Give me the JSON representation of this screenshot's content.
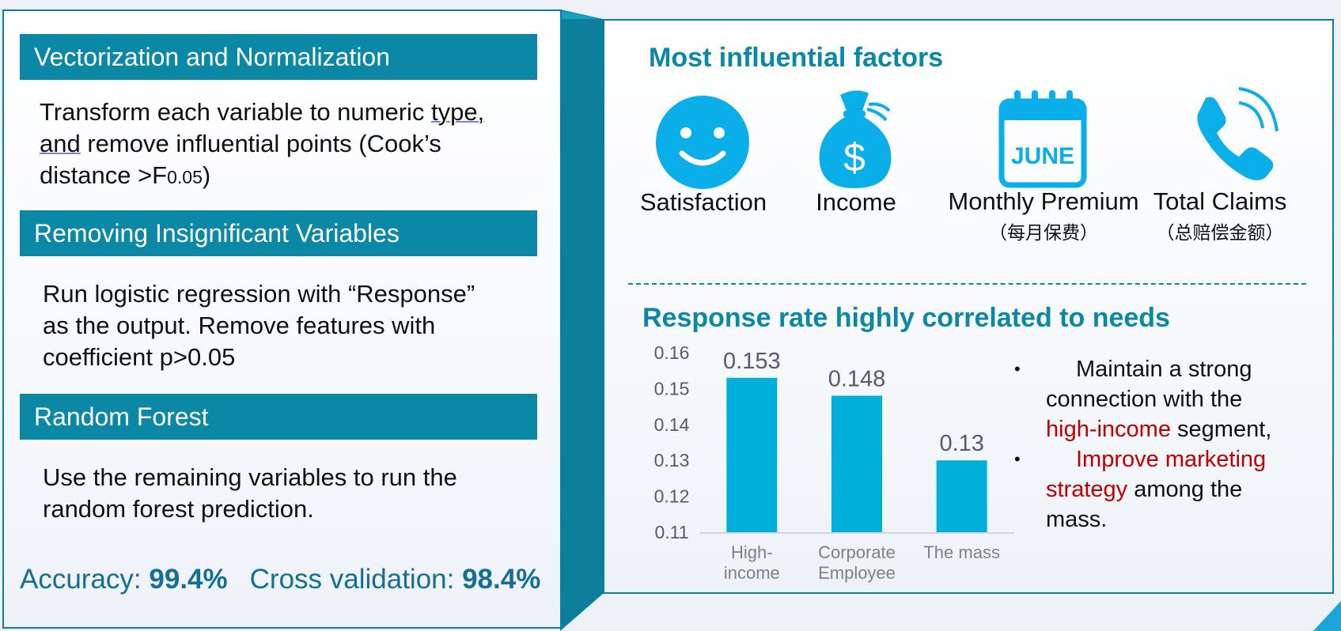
{
  "left": {
    "sections": [
      {
        "title": "Vectorization and Normalization",
        "body_part1": "Transform each variable to numeric ",
        "body_mark1": "type,",
        "body_mark2": "and",
        "body_part2": " remove influential points (Cook’s",
        "body_part3": "distance >F",
        "body_sub": "0.05",
        "body_part4": ")"
      },
      {
        "title": "Removing Insignificant Variables",
        "body_line1": "Run logistic regression with “Response”",
        "body_line2": "as the output. Remove features with",
        "body_line3": "coefficient p>0.05"
      },
      {
        "title": "Random Forest",
        "body_line1": "Use the remaining variables to run the",
        "body_line2": "random forest prediction."
      }
    ],
    "metrics": {
      "accuracy_label": "Accuracy: ",
      "accuracy_value": "99.4%",
      "cv_label": "Cross validation: ",
      "cv_value": "98.4%"
    }
  },
  "right": {
    "factors_title": "Most influential factors",
    "factors": [
      {
        "icon": "smiley-icon",
        "label": "Satisfaction",
        "sublabel": ""
      },
      {
        "icon": "money-bag-icon",
        "label": "Income",
        "sublabel": "",
        "icon_text": "$"
      },
      {
        "icon": "calendar-icon",
        "label": "Monthly Premium",
        "sublabel": "（每月保费）",
        "icon_text": "JUNE"
      },
      {
        "icon": "phone-icon",
        "label": "Total Claims",
        "sublabel": "（总赔偿金额）"
      }
    ],
    "response_title": "Response rate highly correlated to needs",
    "bullets": {
      "b1_line1": "Maintain a strong",
      "b1_line2": "connection with the",
      "b1_highlight": "high-income",
      "b1_rest": " segment,",
      "b2_highlight1": "Improve marketing",
      "b2_highlight2": "strategy",
      "b2_rest": " among the",
      "b2_line3": "mass.",
      "bullet_glyph": "•"
    }
  },
  "colors": {
    "accent": "#0b88a6",
    "bar": "#00b0db",
    "icon": "#0aaee8",
    "highlight_red": "#c00000",
    "metric_text": "#146f96"
  },
  "chart_data": {
    "type": "bar",
    "categories": [
      [
        "High-",
        "income"
      ],
      [
        "Corporate",
        "Employee"
      ],
      [
        "The mass"
      ]
    ],
    "values": [
      0.153,
      0.148,
      0.13
    ],
    "value_labels": [
      "0.153",
      "0.148",
      "0.13"
    ],
    "yticks": [
      "0.16",
      "0.15",
      "0.14",
      "0.13",
      "0.12",
      "0.11"
    ],
    "ylim": [
      0.11,
      0.16
    ],
    "title": "Response rate highly correlated to needs",
    "xlabel": "",
    "ylabel": "",
    "grid": false
  }
}
